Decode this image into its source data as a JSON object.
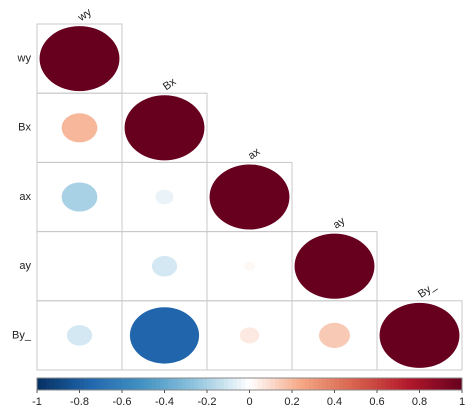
{
  "chart_data": {
    "type": "corrplot",
    "variables": [
      "wy",
      "Bx",
      "ax",
      "ay",
      "By_"
    ],
    "matrix": [
      [
        1
      ],
      [
        0.2,
        1
      ],
      [
        -0.2,
        -0.05,
        1
      ],
      [
        0,
        -0.1,
        0.02,
        1
      ],
      [
        -0.1,
        -0.75,
        0.06,
        0.15,
        1
      ]
    ],
    "colorscale": [
      "#053061",
      "#2166AC",
      "#4393C3",
      "#92C5DE",
      "#FFFFFF",
      "#F4A582",
      "#D6604D",
      "#B2182B",
      "#67001F"
    ],
    "clim": [
      -1,
      1
    ],
    "cticks": [
      -1,
      -0.8,
      -0.6,
      -0.4,
      -0.2,
      0,
      0.2,
      0.4,
      0.6,
      0.8,
      1
    ]
  }
}
